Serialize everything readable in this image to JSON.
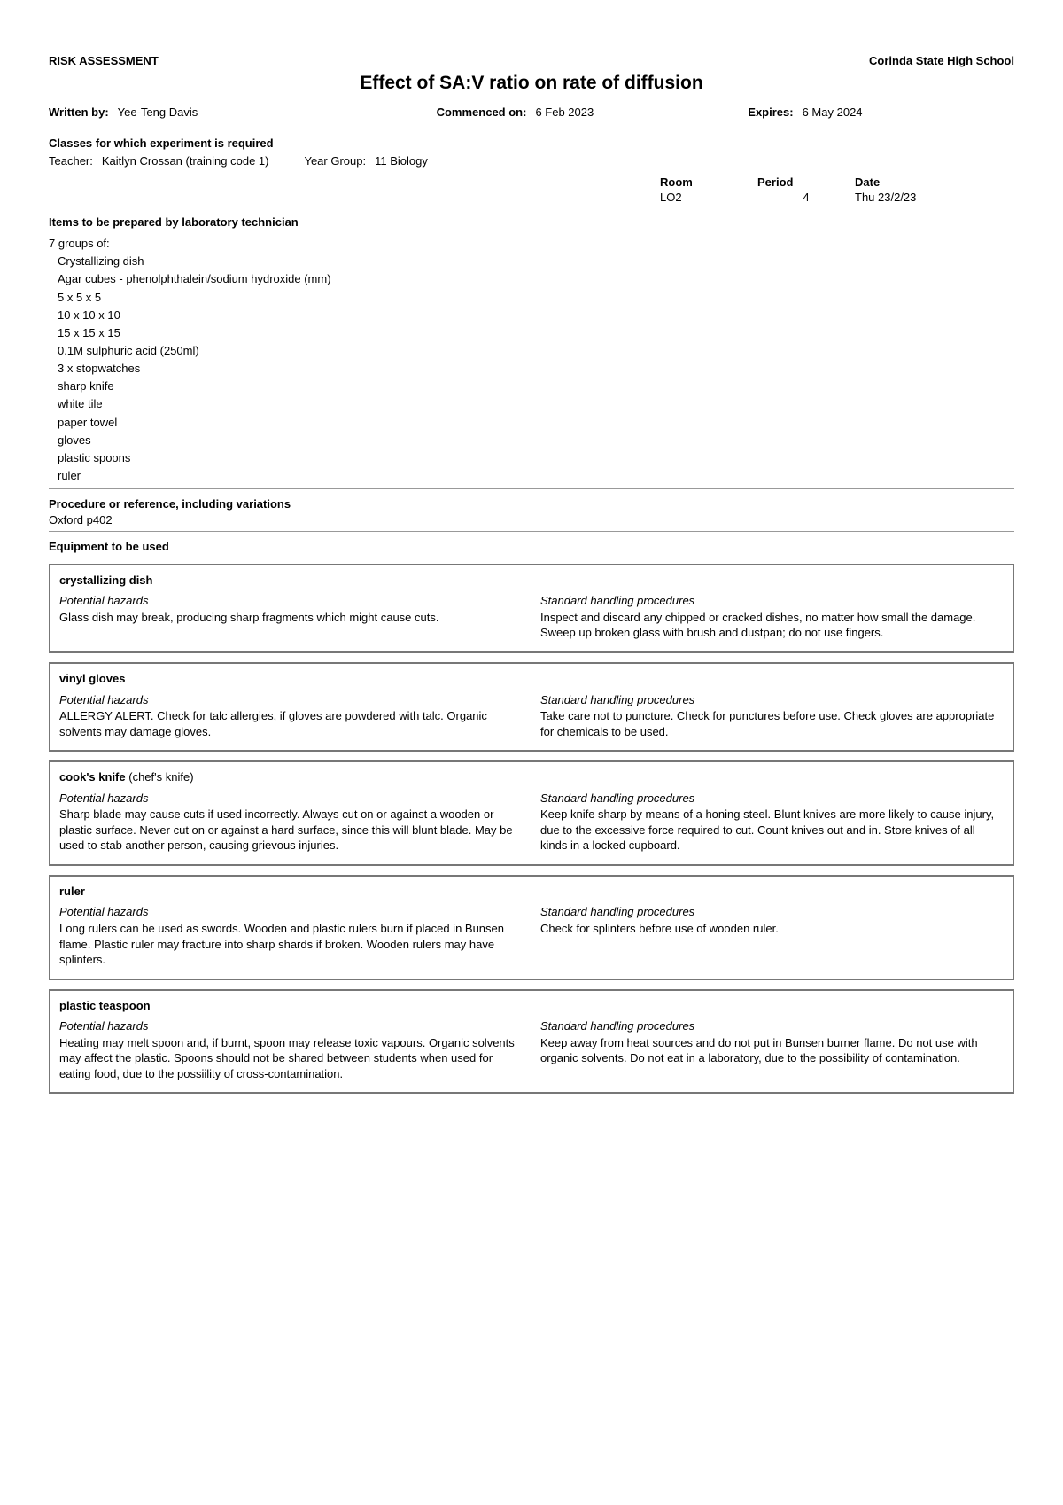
{
  "header": {
    "left": "RISK ASSESSMENT",
    "right": "Corinda State High School",
    "title": "Effect of SA:V ratio on rate of diffusion"
  },
  "meta": {
    "writtenBy_label": "Written by:",
    "writtenBy": "Yee-Teng Davis",
    "commenced_label": "Commenced on:",
    "commenced": "6 Feb 2023",
    "expires_label": "Expires:",
    "expires": "6 May 2024"
  },
  "classes": {
    "heading": "Classes for which experiment is required",
    "teacher_label": "Teacher:",
    "teacher": "Kaitlyn Crossan (training code 1)",
    "year_label": "Year Group:",
    "year": "11 Biology"
  },
  "schedule": {
    "h_room": "Room",
    "h_period": "Period",
    "h_date": "Date",
    "room": "LO2",
    "period": "4",
    "date": "Thu 23/2/23"
  },
  "items": {
    "heading": "Items to be prepared by laboratory technician",
    "lead": "7 groups of:",
    "lines": [
      "Crystallizing dish",
      "Agar cubes - phenolphthalein/sodium hydroxide (mm)",
      "5 x 5 x 5",
      "10 x 10 x 10",
      "15 x 15 x 15",
      "0.1M sulphuric acid (250ml)",
      "3 x stopwatches",
      "sharp knife",
      "white tile",
      "paper towel",
      "gloves",
      "plastic spoons",
      "ruler"
    ]
  },
  "procedure": {
    "heading": "Procedure or reference, including variations",
    "ref": "Oxford p402"
  },
  "equipHeading": "Equipment to be used",
  "hazards_h": "Potential hazards",
  "procedures_h": "Standard handling procedures",
  "equipment": [
    {
      "name": "crystallizing dish",
      "sub": "",
      "hazards": "Glass dish may break, producing sharp fragments which might cause cuts.",
      "procedures": "Inspect and discard any chipped or cracked dishes, no matter how small the damage. Sweep up broken glass with brush and dustpan; do not use fingers."
    },
    {
      "name": "vinyl gloves",
      "sub": "",
      "hazards": "ALLERGY ALERT. Check for talc allergies, if gloves are powdered with talc. Organic solvents may damage gloves.",
      "procedures": "Take care not to puncture. Check for punctures before use. Check gloves are appropriate for chemicals to be used."
    },
    {
      "name": "cook's knife",
      "sub": " (chef's knife)",
      "hazards": "Sharp blade may cause cuts if used incorrectly. Always cut on or against a wooden or plastic surface. Never cut on or against a hard surface, since this will blunt blade. May be used to stab another person, causing grievous injuries.",
      "procedures": "Keep knife sharp by means of a honing steel. Blunt knives are more likely to cause injury, due to the excessive force required to cut. Count knives out and in. Store knives of all kinds in a locked cupboard."
    },
    {
      "name": "ruler",
      "sub": "",
      "hazards": "Long rulers can be used as swords. Wooden and plastic rulers burn if placed in Bunsen flame. Plastic ruler may fracture into sharp shards if broken. Wooden rulers may have splinters.",
      "procedures": "Check for splinters before use of wooden ruler."
    },
    {
      "name": "plastic teaspoon",
      "sub": "",
      "hazards": "Heating may melt spoon and, if burnt, spoon may release toxic vapours. Organic solvents may affect the plastic. Spoons should not be shared between students when used for eating food, due to the possiility of cross-contamination.",
      "procedures": "Keep away from heat sources and do not put in Bunsen burner flame. Do not use with organic solvents. Do not eat in a laboratory, due to the possibility of contamination."
    }
  ]
}
